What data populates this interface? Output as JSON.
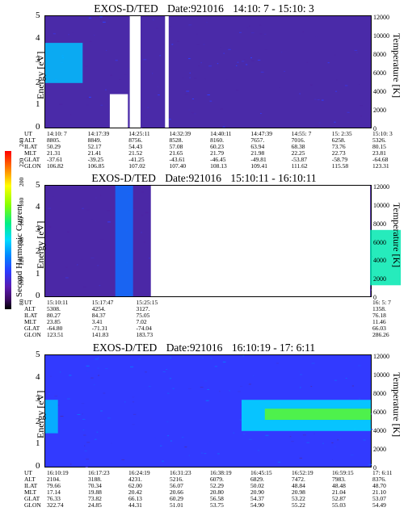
{
  "colorbar": {
    "label": "Second Harmonic Current",
    "ticks": [
      "240",
      "220",
      "200",
      "180",
      "160",
      "140",
      "120",
      "100",
      "80"
    ]
  },
  "panels": [
    {
      "title_inst": "EXOS-D/TED",
      "title_date": "Date:921016",
      "title_time": "14:10: 7 - 15:10: 3",
      "ylabel": "Energy [eV]",
      "y2label": "Temperature [K]",
      "yticks": [
        "5",
        "4",
        "3",
        "2",
        "1",
        "0"
      ],
      "y2ticks": [
        "12000",
        "10000",
        "8000",
        "6000",
        "4000",
        "2000",
        "0"
      ],
      "table": {
        "labels": [
          "UT",
          "ALT",
          "ILAT",
          "MLT",
          "GLAT",
          "GLON"
        ],
        "columns": [
          [
            "14:10: 7",
            "8805.",
            "50.29",
            "21.31",
            "-37.61",
            "106.82"
          ],
          [
            "14:17:39",
            "8849.",
            "52.17",
            "21.41",
            "-39.25",
            "106.85"
          ],
          [
            "14:25:11",
            "8756.",
            "54.43",
            "21.52",
            "-41.25",
            "107.02"
          ],
          [
            "14:32:39",
            "8528.",
            "57.08",
            "21.65",
            "-43.61",
            "107.40"
          ],
          [
            "14:40:11",
            "8160.",
            "60.23",
            "21.79",
            "-46.45",
            "108.13"
          ],
          [
            "14:47:39",
            "7657.",
            "63.94",
            "21.98",
            "-49.81",
            "109.41"
          ],
          [
            "14:55: 7",
            "7016.",
            "68.38",
            "22.25",
            "-53.87",
            "111.62"
          ],
          [
            "15: 2:35",
            "6258.",
            "73.76",
            "22.73",
            "-58.79",
            "115.58"
          ],
          [
            "15:10: 3",
            "5326.",
            "80.15",
            "23.81",
            "-64.68",
            "123.31"
          ]
        ]
      }
    },
    {
      "title_inst": "EXOS-D/TED",
      "title_date": "Date:921016",
      "title_time": "15:10:11 - 16:10:11",
      "ylabel": "Energy [eV]",
      "y2label": "Temperature [K]",
      "yticks": [
        "5",
        "4",
        "3",
        "2",
        "1",
        "0"
      ],
      "y2ticks": [
        "12000",
        "10000",
        "8000",
        "6000",
        "4000",
        "2000",
        "0"
      ],
      "table": {
        "labels": [
          "UT",
          "ALT",
          "ILAT",
          "MLT",
          "GLAT",
          "GLON"
        ],
        "columns": [
          [
            "15:10:11",
            "5308.",
            "80.27",
            "23.85",
            "-64.80",
            "123.51"
          ],
          [
            "15:17:47",
            "4254.",
            "84.37",
            "3.41",
            "-71.31",
            "141.83"
          ],
          [
            "15:25:15",
            "3127.",
            "75.05",
            "7.02",
            "-74.04",
            "183.73"
          ],
          [
            "16: 5: 7",
            "1358.",
            "76.18",
            "11.46",
            "66.03",
            "286.26"
          ]
        ]
      }
    },
    {
      "title_inst": "EXOS-D/TED",
      "title_date": "Date:921016",
      "title_time": "16:10:19 - 17: 6:11",
      "ylabel": "Energy [eV]",
      "y2label": "Temperature [K]",
      "yticks": [
        "5",
        "4",
        "3",
        "2",
        "1",
        "0"
      ],
      "y2ticks": [
        "12000",
        "10000",
        "8000",
        "6000",
        "4000",
        "2000",
        "0"
      ],
      "table": {
        "labels": [
          "UT",
          "ALT",
          "ILAT",
          "MLT",
          "GLAT",
          "GLON"
        ],
        "columns": [
          [
            "16:10:19",
            "2104.",
            "79.66",
            "17.14",
            "76.33",
            "322.74"
          ],
          [
            "16:17:23",
            "3188.",
            "70.34",
            "19.88",
            "73.82",
            "24.85"
          ],
          [
            "16:24:19",
            "4231.",
            "62.00",
            "20.42",
            "66.13",
            "44.31"
          ],
          [
            "16:31:23",
            "5216.",
            "56.07",
            "20.66",
            "60.29",
            "51.01"
          ],
          [
            "16:38:19",
            "6079.",
            "52.29",
            "20.80",
            "56.58",
            "53.75"
          ],
          [
            "16:45:15",
            "6829.",
            "50.02",
            "20.90",
            "54.37",
            "54.90"
          ],
          [
            "16:52:19",
            "7472.",
            "48.84",
            "20.98",
            "53.22",
            "55.22"
          ],
          [
            "16:59:15",
            "7983.",
            "48.48",
            "21.04",
            "52.87",
            "55.03"
          ],
          [
            "17: 6:11",
            "8376.",
            "48.70",
            "21.10",
            "53.07",
            "54.49"
          ]
        ]
      }
    }
  ],
  "chart_data": [
    {
      "type": "heatmap",
      "title": "EXOS-D/TED Date:921016 14:10: 7 - 15:10: 3",
      "xlabel": "UT",
      "ylabel": "Energy [eV]",
      "y2label": "Temperature [K]",
      "ylim": [
        0,
        5
      ],
      "y2lim": [
        0,
        12000
      ],
      "x": [
        "14:10: 7",
        "14:17:39",
        "14:25:11",
        "14:32:39",
        "14:40:11",
        "14:47:39",
        "14:55: 7",
        "15: 2:35",
        "15:10: 3"
      ],
      "colorbar_range": [
        80,
        240
      ],
      "background_level": 125,
      "features": [
        {
          "ut_start": "14:10: 7",
          "ut_end": "14:17:00",
          "energy_range": [
            2.0,
            3.8
          ],
          "level": 160
        },
        {
          "ut_start": "14:25:40",
          "ut_end": "14:27:40",
          "energy_range": [
            0,
            5
          ],
          "level": "no data"
        },
        {
          "ut_start": "14:32:10",
          "ut_end": "14:32:50",
          "energy_range": [
            0,
            5
          ],
          "level": "no data"
        },
        {
          "ut_start": "14:22:00",
          "ut_end": "14:25:20",
          "energy_range": [
            0,
            1.5
          ],
          "level": "no data"
        }
      ]
    },
    {
      "type": "heatmap",
      "title": "EXOS-D/TED Date:921016 15:10:11 - 16:10:11",
      "xlabel": "UT",
      "ylabel": "Energy [eV]",
      "y2label": "Temperature [K]",
      "ylim": [
        0,
        5
      ],
      "y2lim": [
        0,
        12000
      ],
      "x": [
        "15:10:11",
        "15:17:47",
        "15:25:15",
        "16: 5: 7"
      ],
      "colorbar_range": [
        80,
        240
      ],
      "background_level": 122,
      "features": [
        {
          "ut_start": "15:22:00",
          "ut_end": "15:25:00",
          "energy_range": [
            0,
            5
          ],
          "level": 145
        },
        {
          "ut_start": "15:28:00",
          "ut_end": "16: 5:00",
          "energy_range": [
            0,
            5
          ],
          "level": "no data"
        },
        {
          "ut_start": "16: 5:00",
          "ut_end": "16:10:11",
          "energy_range": [
            0.5,
            3.0
          ],
          "level": 175
        }
      ]
    },
    {
      "type": "heatmap",
      "title": "EXOS-D/TED Date:921016 16:10:19 - 17: 6:11",
      "xlabel": "UT",
      "ylabel": "Energy [eV]",
      "y2label": "Temperature [K]",
      "ylim": [
        0,
        5
      ],
      "y2lim": [
        0,
        12000
      ],
      "x": [
        "16:10:19",
        "16:17:23",
        "16:24:19",
        "16:31:23",
        "16:38:19",
        "16:45:15",
        "16:52:19",
        "16:59:15",
        "17: 6:11"
      ],
      "colorbar_range": [
        80,
        240
      ],
      "background_level": 135,
      "features": [
        {
          "ut_start": "16:10:19",
          "ut_end": "16:12:30",
          "energy_range": [
            1.5,
            3.0
          ],
          "level": 160
        },
        {
          "ut_start": "16:44:00",
          "ut_end": "17: 6:11",
          "energy_range": [
            1.6,
            3.0
          ],
          "level": 165
        },
        {
          "ut_start": "16:48:00",
          "ut_end": "17: 6:11",
          "energy_range": [
            2.1,
            2.6
          ],
          "level": 190
        }
      ]
    }
  ]
}
